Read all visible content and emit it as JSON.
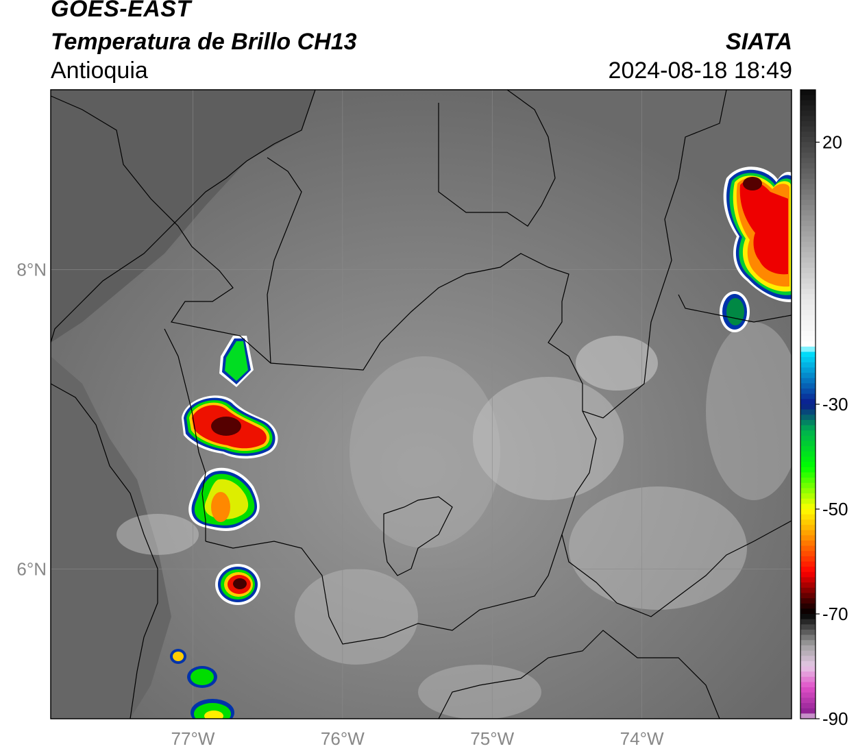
{
  "header": {
    "satellite": "GOES-EAST",
    "product": "Temperatura de Brillo CH13",
    "region": "Antioquia",
    "organization": "SIATA",
    "datetime": "2024-08-18 18:49"
  },
  "axes": {
    "x_ticks": [
      {
        "value": -77,
        "label": "77°W"
      },
      {
        "value": -76,
        "label": "76°W"
      },
      {
        "value": -75,
        "label": "75°W"
      },
      {
        "value": -74,
        "label": "74°W"
      }
    ],
    "y_ticks": [
      {
        "value": 8,
        "label": "8°N"
      },
      {
        "value": 6,
        "label": "6°N"
      }
    ],
    "lon_range": [
      -77.95,
      -73.0
    ],
    "lat_range": [
      5.0,
      9.2
    ],
    "gridlines": true
  },
  "colorbar": {
    "range": [
      -90,
      30
    ],
    "ticks": [
      {
        "value": 20,
        "label": "20"
      },
      {
        "value": -30,
        "label": "-30"
      },
      {
        "value": -50,
        "label": "-50"
      },
      {
        "value": -70,
        "label": "-70"
      },
      {
        "value": -90,
        "label": "-90"
      }
    ],
    "stops": [
      {
        "value": 30,
        "color": "#0a0a0a"
      },
      {
        "value": 10,
        "color": "#7a7a7a"
      },
      {
        "value": -10,
        "color": "#e8e8e8"
      },
      {
        "value": -19,
        "color": "#ffffff"
      },
      {
        "value": -20,
        "color": "#00e5ff"
      },
      {
        "value": -30,
        "color": "#0a1a8c"
      },
      {
        "value": -35,
        "color": "#00b050"
      },
      {
        "value": -42,
        "color": "#00ff00"
      },
      {
        "value": -50,
        "color": "#ffff00"
      },
      {
        "value": -55,
        "color": "#ff9900"
      },
      {
        "value": -62,
        "color": "#ff0000"
      },
      {
        "value": -68,
        "color": "#330000"
      },
      {
        "value": -70,
        "color": "#000000"
      },
      {
        "value": -76,
        "color": "#a0a0a0"
      },
      {
        "value": -80,
        "color": "#e6c8e6"
      },
      {
        "value": -84,
        "color": "#e050c8"
      },
      {
        "value": -89,
        "color": "#8c2090"
      },
      {
        "value": -90,
        "color": "#ffffff"
      }
    ]
  },
  "storm_cells": [
    {
      "name": "north-east-cell",
      "lon": -73.2,
      "lat": 8.1,
      "min_temp": -68
    },
    {
      "name": "cell-7.1N",
      "lon": -76.8,
      "lat": 7.1,
      "min_temp": -66
    },
    {
      "name": "cell-6.5N",
      "lon": -76.9,
      "lat": 6.45,
      "min_temp": -56
    },
    {
      "name": "cell-5.9N",
      "lon": -76.7,
      "lat": 5.9,
      "min_temp": -70
    },
    {
      "name": "cell-7.5N",
      "lon": -76.7,
      "lat": 7.5,
      "min_temp": -45
    }
  ]
}
